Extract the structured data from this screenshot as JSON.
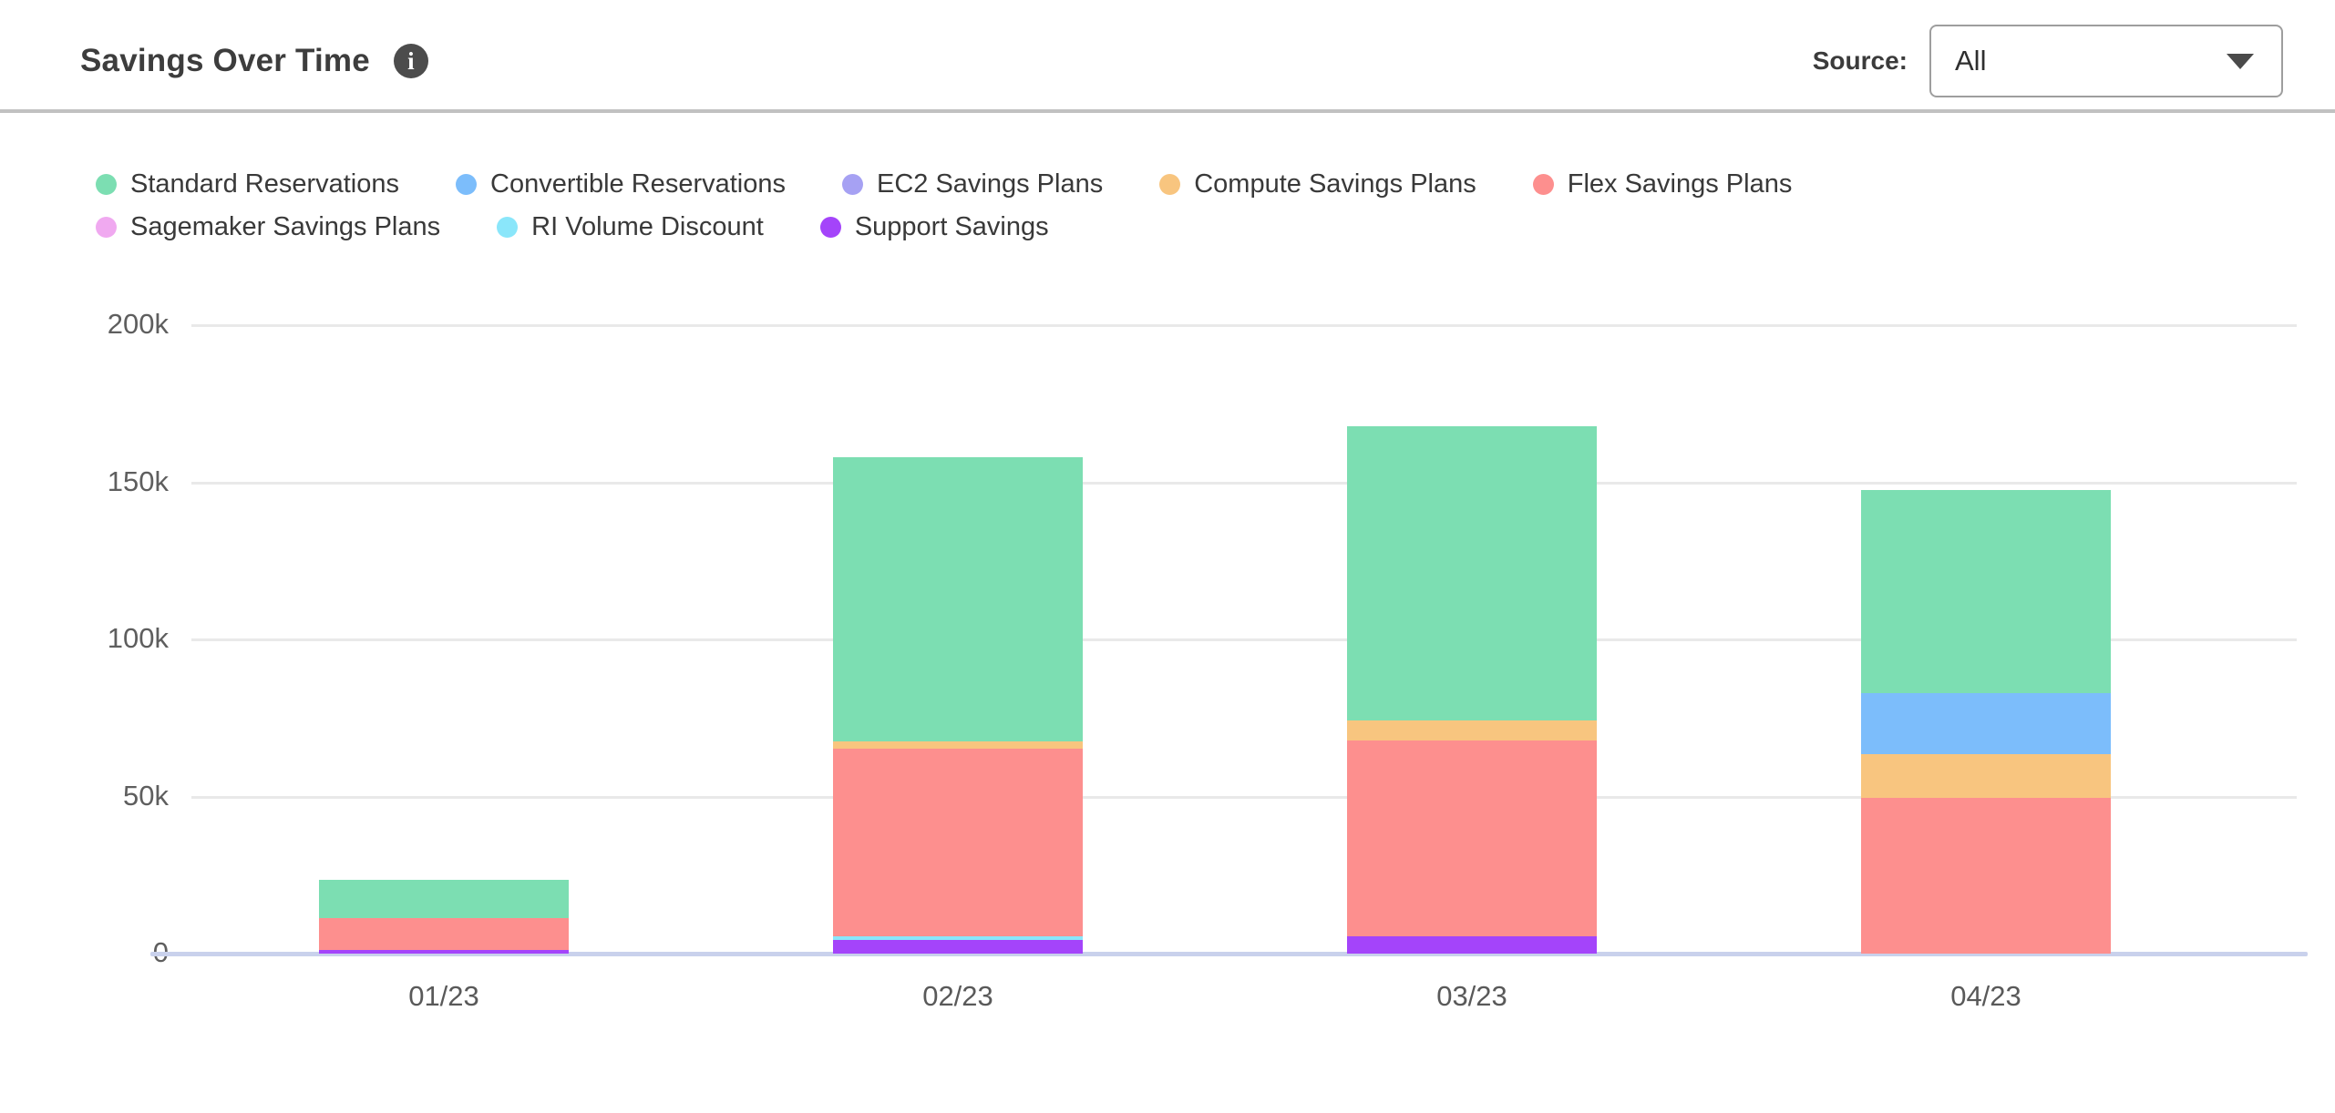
{
  "header": {
    "title": "Savings Over Time",
    "source_label": "Source:",
    "source_value": "All"
  },
  "chart_data": {
    "type": "bar",
    "stacked": true,
    "title": "Savings Over Time",
    "categories": [
      "01/23",
      "02/23",
      "03/23",
      "04/23"
    ],
    "series": [
      {
        "name": "Standard Reservations",
        "color": "#7cdeb2",
        "values": [
          12.2,
          90.4,
          93.6,
          64.6
        ]
      },
      {
        "name": "Convertible Reservations",
        "color": "#7cbdfb",
        "values": [
          0,
          0,
          0,
          19.4
        ]
      },
      {
        "name": "EC2 Savings Plans",
        "color": "#a6a1f3",
        "values": [
          0,
          0,
          0,
          0
        ]
      },
      {
        "name": "Compute Savings Plans",
        "color": "#f8c57f",
        "values": [
          0,
          2.3,
          6.4,
          13.9
        ]
      },
      {
        "name": "Flex Savings Plans",
        "color": "#fd8f8e",
        "values": [
          10.1,
          59.7,
          62.3,
          49.6
        ]
      },
      {
        "name": "Sagemaker Savings Plans",
        "color": "#f0a9f0",
        "values": [
          0,
          0,
          0,
          0
        ]
      },
      {
        "name": "RI Volume Discount",
        "color": "#8ae6fa",
        "values": [
          0,
          1.2,
          0,
          0
        ]
      },
      {
        "name": "Support Savings",
        "color": "#a444fa",
        "values": [
          1.2,
          4.3,
          5.5,
          0
        ]
      }
    ],
    "totals": [
      23.5,
      157.9,
      167.8,
      147.5
    ],
    "units": "k",
    "y_ticks": [
      {
        "label": "200k",
        "value": 200
      },
      {
        "label": "150k",
        "value": 150
      },
      {
        "label": "100k",
        "value": 100
      },
      {
        "label": "50k",
        "value": 50
      },
      {
        "label": "0",
        "value": 0
      }
    ],
    "ylim": [
      0,
      200
    ],
    "xlabel": "",
    "ylabel": "",
    "grid": true,
    "legend_position": "top",
    "stack_order": "reverse-legend (Support Savings at bottom, Standard Reservations on top)"
  },
  "colors": {
    "axis_line": "#c9d1ec",
    "gridline": "#e9e9e9",
    "divider": "#c1c1c1",
    "info_icon_bg": "#4c4c4c"
  },
  "icons": {
    "info": "i",
    "dropdown_caret": "caret-down"
  }
}
